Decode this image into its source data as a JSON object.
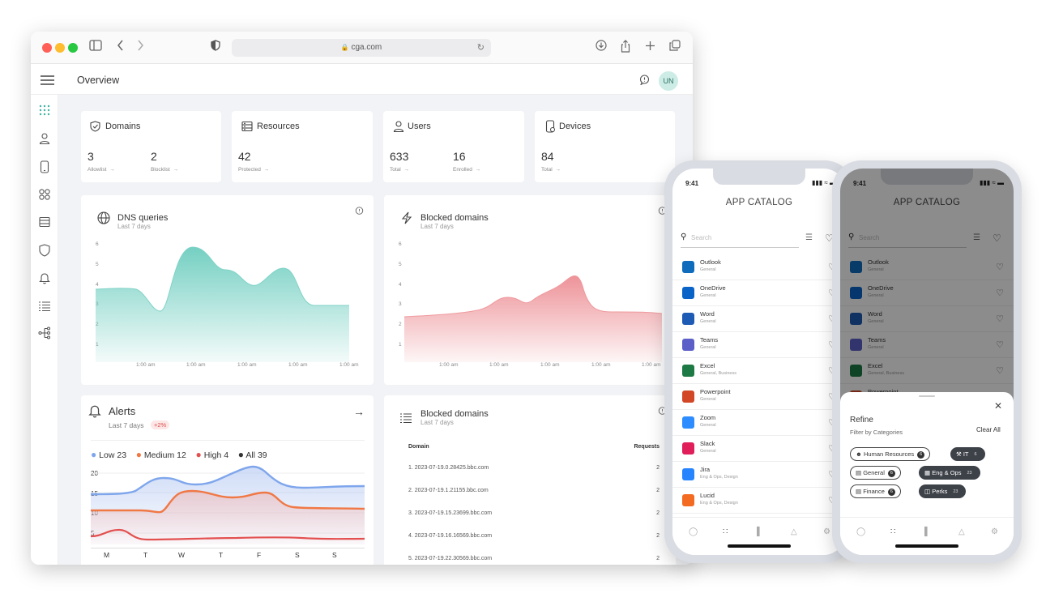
{
  "browser": {
    "url": "cga.com",
    "traffic_lights": [
      "#ff5f57",
      "#febc2e",
      "#28c840"
    ]
  },
  "header": {
    "title": "Overview",
    "avatar_initials": "UN"
  },
  "sidebar": {
    "icons": [
      "apps-grid-icon",
      "user-icon",
      "device-icon",
      "apps-icon",
      "server-icon",
      "shield-icon",
      "bell-icon",
      "list-icon",
      "network-icon"
    ]
  },
  "stats": [
    {
      "title": "Domains",
      "icon": "shield-check-icon",
      "items": [
        {
          "value": "3",
          "label": "Allowlist"
        },
        {
          "value": "2",
          "label": "Blocklist"
        }
      ]
    },
    {
      "title": "Resources",
      "icon": "server-icon",
      "items": [
        {
          "value": "42",
          "label": "Protected"
        }
      ]
    },
    {
      "title": "Users",
      "icon": "user-icon",
      "items": [
        {
          "value": "633",
          "label": "Total"
        },
        {
          "value": "16",
          "label": "Enrolled"
        }
      ]
    },
    {
      "title": "Devices",
      "icon": "device-icon",
      "items": [
        {
          "value": "84",
          "label": "Total"
        }
      ]
    }
  ],
  "dns_chart": {
    "title": "DNS queries",
    "subtitle": "Last 7 days",
    "yticks": [
      "6",
      "5",
      "4",
      "3",
      "2",
      "1"
    ],
    "xticks": [
      "1:00 am",
      "1:00 am",
      "1:00 am",
      "1:00 am",
      "1:00 am"
    ],
    "color": "#7fd3c7"
  },
  "blocked_chart": {
    "title": "Blocked domains",
    "subtitle": "Last 7 days",
    "yticks": [
      "6",
      "5",
      "4",
      "3",
      "2",
      "1"
    ],
    "xticks": [
      "1:00 am",
      "1:00 am",
      "1:00 am",
      "1:00 am",
      "1:00 am"
    ],
    "color": "#ef9a9e"
  },
  "alerts": {
    "title": "Alerts",
    "subtitle": "Last 7 days",
    "badge": "+2%",
    "legend": [
      {
        "label": "Low",
        "value": "23",
        "color": "#7fa6ec"
      },
      {
        "label": "Medium",
        "value": "12",
        "color": "#f07845"
      },
      {
        "label": "High",
        "value": "4",
        "color": "#e35050"
      },
      {
        "label": "All",
        "value": "39",
        "color": "#333333"
      }
    ],
    "yticks": [
      "20",
      "15",
      "10",
      "5"
    ],
    "days": [
      "M",
      "T",
      "W",
      "T",
      "F",
      "S",
      "S"
    ]
  },
  "blocked_table": {
    "title": "Blocked domains",
    "subtitle": "Last 7 days",
    "col_domain": "Domain",
    "col_requests": "Requests",
    "rows": [
      {
        "domain": "1. 2023-07-19.0.28425.bbc.com",
        "requests": "2"
      },
      {
        "domain": "2. 2023-07-19.1.21155.bbc.com",
        "requests": "2"
      },
      {
        "domain": "3. 2023-07-19.15.23699.bbc.com",
        "requests": "2"
      },
      {
        "domain": "4. 2023-07-19.16.16569.bbc.com",
        "requests": "2"
      },
      {
        "domain": "5. 2023-07-19.22.30569.bbc.com",
        "requests": "2"
      }
    ]
  },
  "phone": {
    "time": "9:41",
    "title": "APP CATALOG",
    "search_placeholder": "Search",
    "apps": [
      {
        "name": "Outlook",
        "category": "General",
        "color": "#0f6cbd"
      },
      {
        "name": "OneDrive",
        "category": "General",
        "color": "#0a64c8"
      },
      {
        "name": "Word",
        "category": "General",
        "color": "#1e5bb5"
      },
      {
        "name": "Teams",
        "category": "General",
        "color": "#5b5fc7"
      },
      {
        "name": "Excel",
        "category": "General, Business",
        "color": "#1d7a45"
      },
      {
        "name": "Powerpoint",
        "category": "General",
        "color": "#d24726"
      },
      {
        "name": "Zoom",
        "category": "General",
        "color": "#2d8cff"
      },
      {
        "name": "Slack",
        "category": "General",
        "color": "#e01e5a"
      },
      {
        "name": "Jira",
        "category": "Eng & Ops, Design",
        "color": "#2684ff"
      },
      {
        "name": "Lucid",
        "category": "Eng & Ops, Design",
        "color": "#f26b21"
      }
    ]
  },
  "refine": {
    "title": "Refine",
    "subtitle": "Filter by Categories",
    "clear_all": "Clear All",
    "chips": [
      {
        "label": "Human Resources",
        "count": "6",
        "selected": false
      },
      {
        "label": "IT",
        "count": "6",
        "selected": true
      },
      {
        "label": "General",
        "count": "6",
        "selected": false
      },
      {
        "label": "Eng & Ops",
        "count": "23",
        "selected": true
      },
      {
        "label": "Finance",
        "count": "6",
        "selected": false
      },
      {
        "label": "Perks",
        "count": "23",
        "selected": true
      }
    ]
  }
}
